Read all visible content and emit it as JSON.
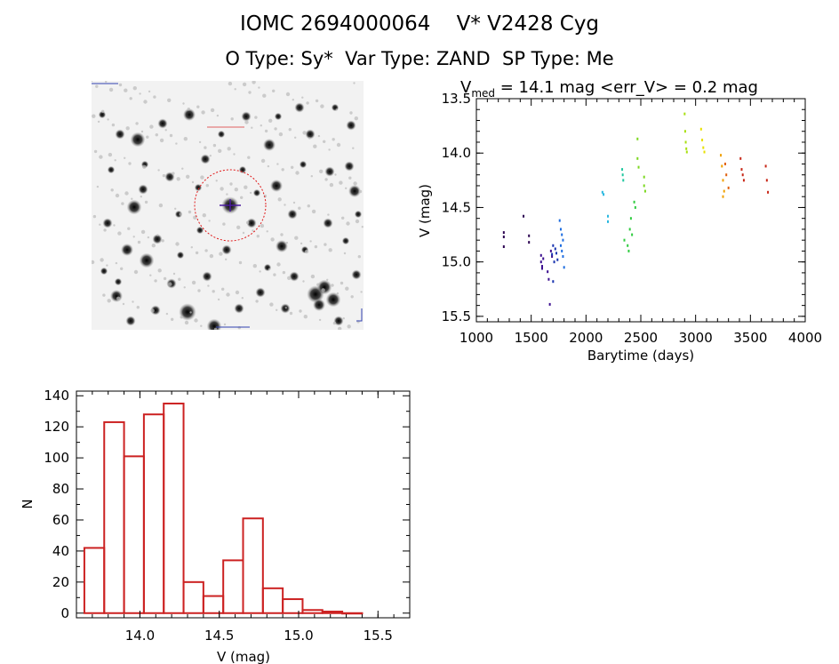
{
  "title": {
    "line1_id": "IOMC 2694000064",
    "line1_name": "V* V2428 Cyg",
    "line2": "O Type: Sy*  Var Type: ZAND  SP Type: Me"
  },
  "finder_image": {
    "description_labels": []
  },
  "lightcurve_header": {
    "v_sym": "V",
    "v_sub": "med",
    "rest": " = 14.1 mag <err_V> = 0.2 mag"
  },
  "chart_data": [
    {
      "type": "scatter",
      "xlabel": "Barytime (days)",
      "ylabel": "V (mag)",
      "xlim": [
        1000,
        4000
      ],
      "ylim": [
        15.55,
        13.5
      ],
      "y_inverted": true,
      "xticks": [
        "1000",
        "1500",
        "2000",
        "2500",
        "3000",
        "3500",
        "4000"
      ],
      "yticks": [
        "13.5",
        "14.0",
        "14.5",
        "15.0",
        "15.5"
      ],
      "series": [
        {
          "color": "#2a0050",
          "x": [
            1250,
            1250,
            1250,
            1430,
            1480,
            1480
          ],
          "y": [
            14.73,
            14.77,
            14.86,
            14.58,
            14.76,
            14.82
          ]
        },
        {
          "color": "#3c1090",
          "x": [
            1590,
            1590,
            1600,
            1600,
            1610,
            1650,
            1660,
            1670,
            1680,
            1690
          ],
          "y": [
            14.94,
            15.0,
            15.04,
            15.06,
            14.97,
            15.09,
            15.16,
            15.39,
            14.9,
            14.95
          ]
        },
        {
          "color": "#1a35b0",
          "x": [
            1690,
            1700,
            1710,
            1720,
            1730,
            1740,
            1700
          ],
          "y": [
            14.93,
            14.85,
            15.0,
            14.88,
            14.92,
            14.98,
            15.18
          ]
        },
        {
          "color": "#1e6de0",
          "x": [
            1760,
            1770,
            1780,
            1790,
            1770,
            1780,
            1790,
            1800
          ],
          "y": [
            14.62,
            14.7,
            14.75,
            14.8,
            14.85,
            14.9,
            14.95,
            15.05
          ]
        },
        {
          "color": "#2ab8e0",
          "x": [
            2150,
            2160,
            2200,
            2200
          ],
          "y": [
            14.36,
            14.38,
            14.58,
            14.63
          ]
        },
        {
          "color": "#22c8a0",
          "x": [
            2330,
            2340,
            2335
          ],
          "y": [
            14.15,
            14.25,
            14.2
          ]
        },
        {
          "color": "#30cc40",
          "x": [
            2350,
            2390,
            2400,
            2410,
            2420,
            2380,
            2440,
            2450
          ],
          "y": [
            14.8,
            14.9,
            14.7,
            14.6,
            14.75,
            14.85,
            14.45,
            14.5
          ]
        },
        {
          "color": "#7cd820",
          "x": [
            2470,
            2470,
            2480,
            2530,
            2530,
            2540
          ],
          "y": [
            13.87,
            14.05,
            14.13,
            14.22,
            14.3,
            14.35
          ]
        },
        {
          "color": "#a8e010",
          "x": [
            2900,
            2905,
            2910,
            2915,
            2920
          ],
          "y": [
            13.64,
            13.8,
            13.9,
            13.96,
            13.99
          ]
        },
        {
          "color": "#e8e000",
          "x": [
            3050,
            3060,
            3070,
            3080
          ],
          "y": [
            13.78,
            13.88,
            13.95,
            13.99
          ]
        },
        {
          "color": "#f0a000",
          "x": [
            3230,
            3240,
            3250,
            3260,
            3250
          ],
          "y": [
            14.02,
            14.12,
            14.25,
            14.35,
            14.4
          ]
        },
        {
          "color": "#e06010",
          "x": [
            3270,
            3280,
            3300
          ],
          "y": [
            14.1,
            14.2,
            14.32
          ]
        },
        {
          "color": "#c82818",
          "x": [
            3410,
            3420,
            3430,
            3440,
            3640,
            3650,
            3660
          ],
          "y": [
            14.05,
            14.15,
            14.2,
            14.25,
            14.12,
            14.25,
            14.36
          ]
        }
      ]
    },
    {
      "type": "bar",
      "xlabel": "V (mag)",
      "ylabel": "N",
      "xlim": [
        13.6,
        15.7
      ],
      "ylim": [
        -3,
        140
      ],
      "xticks": [
        "14.0",
        "14.5",
        "15.0",
        "15.5"
      ],
      "yticks": [
        "0",
        "20",
        "40",
        "60",
        "80",
        "100",
        "120",
        "140"
      ],
      "bin_width": 0.125,
      "bin_left_edges": [
        13.65,
        13.775,
        13.9,
        14.025,
        14.15,
        14.275,
        14.4,
        14.525,
        14.65,
        14.775,
        14.9,
        15.025,
        15.15,
        15.275
      ],
      "values": [
        42,
        123,
        101,
        128,
        135,
        20,
        11,
        34,
        61,
        16,
        9,
        2,
        1,
        0
      ],
      "bar_color": "#cc2222"
    }
  ]
}
